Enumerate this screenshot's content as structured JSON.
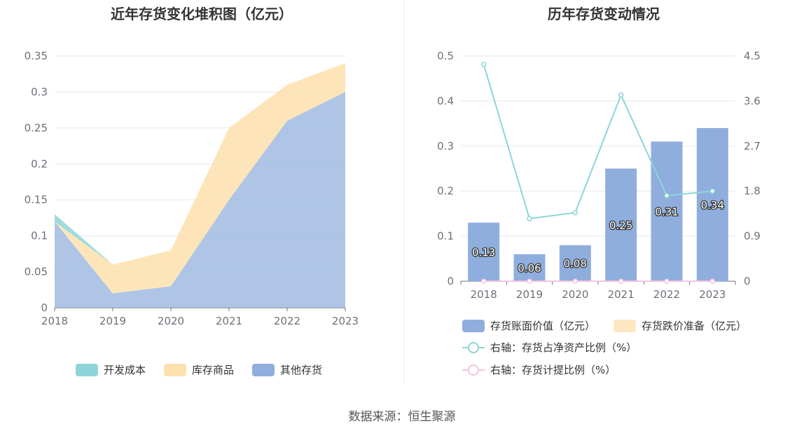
{
  "chart_data": [
    {
      "type": "area",
      "stacked": true,
      "title": "近年存货变化堆积图（亿元）",
      "categories": [
        "2018",
        "2019",
        "2020",
        "2021",
        "2022",
        "2023"
      ],
      "y_ticks": [
        "0",
        "0.05",
        "0.1",
        "0.15",
        "0.2",
        "0.25",
        "0.3",
        "0.35"
      ],
      "ylim": [
        0,
        0.35
      ],
      "grid": true,
      "legend_position": "bottom",
      "series": [
        {
          "name": "开发成本",
          "color": "#8dd5d9",
          "values": [
            0.01,
            0.0,
            0.0,
            0.0,
            0.0,
            0.0
          ]
        },
        {
          "name": "库存商品",
          "color": "#fde1ad",
          "values": [
            0.0,
            0.04,
            0.05,
            0.1,
            0.05,
            0.04
          ]
        },
        {
          "name": "其他存货",
          "color": "#8faedd",
          "values": [
            0.12,
            0.02,
            0.03,
            0.15,
            0.26,
            0.3
          ]
        }
      ]
    },
    {
      "type": "bar",
      "title": "历年存货变动情况",
      "categories": [
        "2018",
        "2019",
        "2020",
        "2021",
        "2022",
        "2023"
      ],
      "y_left_ticks": [
        "0",
        "0.1",
        "0.2",
        "0.3",
        "0.4",
        "0.5"
      ],
      "y_right_ticks": [
        "0",
        "0.9",
        "1.8",
        "2.7",
        "3.6",
        "4.5"
      ],
      "ylim_left": [
        0,
        0.5
      ],
      "ylim_right": [
        0,
        4.5
      ],
      "grid": true,
      "legend_position": "bottom",
      "series": [
        {
          "name": "存货账面价值（亿元）",
          "type": "bar",
          "axis": "left",
          "color": "#8faedd",
          "values": [
            0.13,
            0.06,
            0.08,
            0.25,
            0.31,
            0.34
          ],
          "labels": [
            "0.13",
            "0.06",
            "0.08",
            "0.25",
            "0.31",
            "0.34"
          ]
        },
        {
          "name": "存货跌价准备（亿元）",
          "type": "bar",
          "axis": "left",
          "color": "#fde6c2",
          "values": [
            0,
            0,
            0,
            0,
            0,
            0
          ]
        },
        {
          "name": "右轴：存货占净资产比例（%）",
          "type": "line",
          "axis": "right",
          "color": "#8dd5d9",
          "values": [
            4.33,
            1.25,
            1.37,
            3.72,
            1.71,
            1.8
          ]
        },
        {
          "name": "右轴：存货计提比例（%）",
          "type": "line",
          "axis": "right",
          "color": "#f3c4e1",
          "values": [
            0,
            0,
            0,
            0,
            0,
            0
          ]
        }
      ]
    }
  ],
  "source_text": "数据来源：恒生聚源"
}
